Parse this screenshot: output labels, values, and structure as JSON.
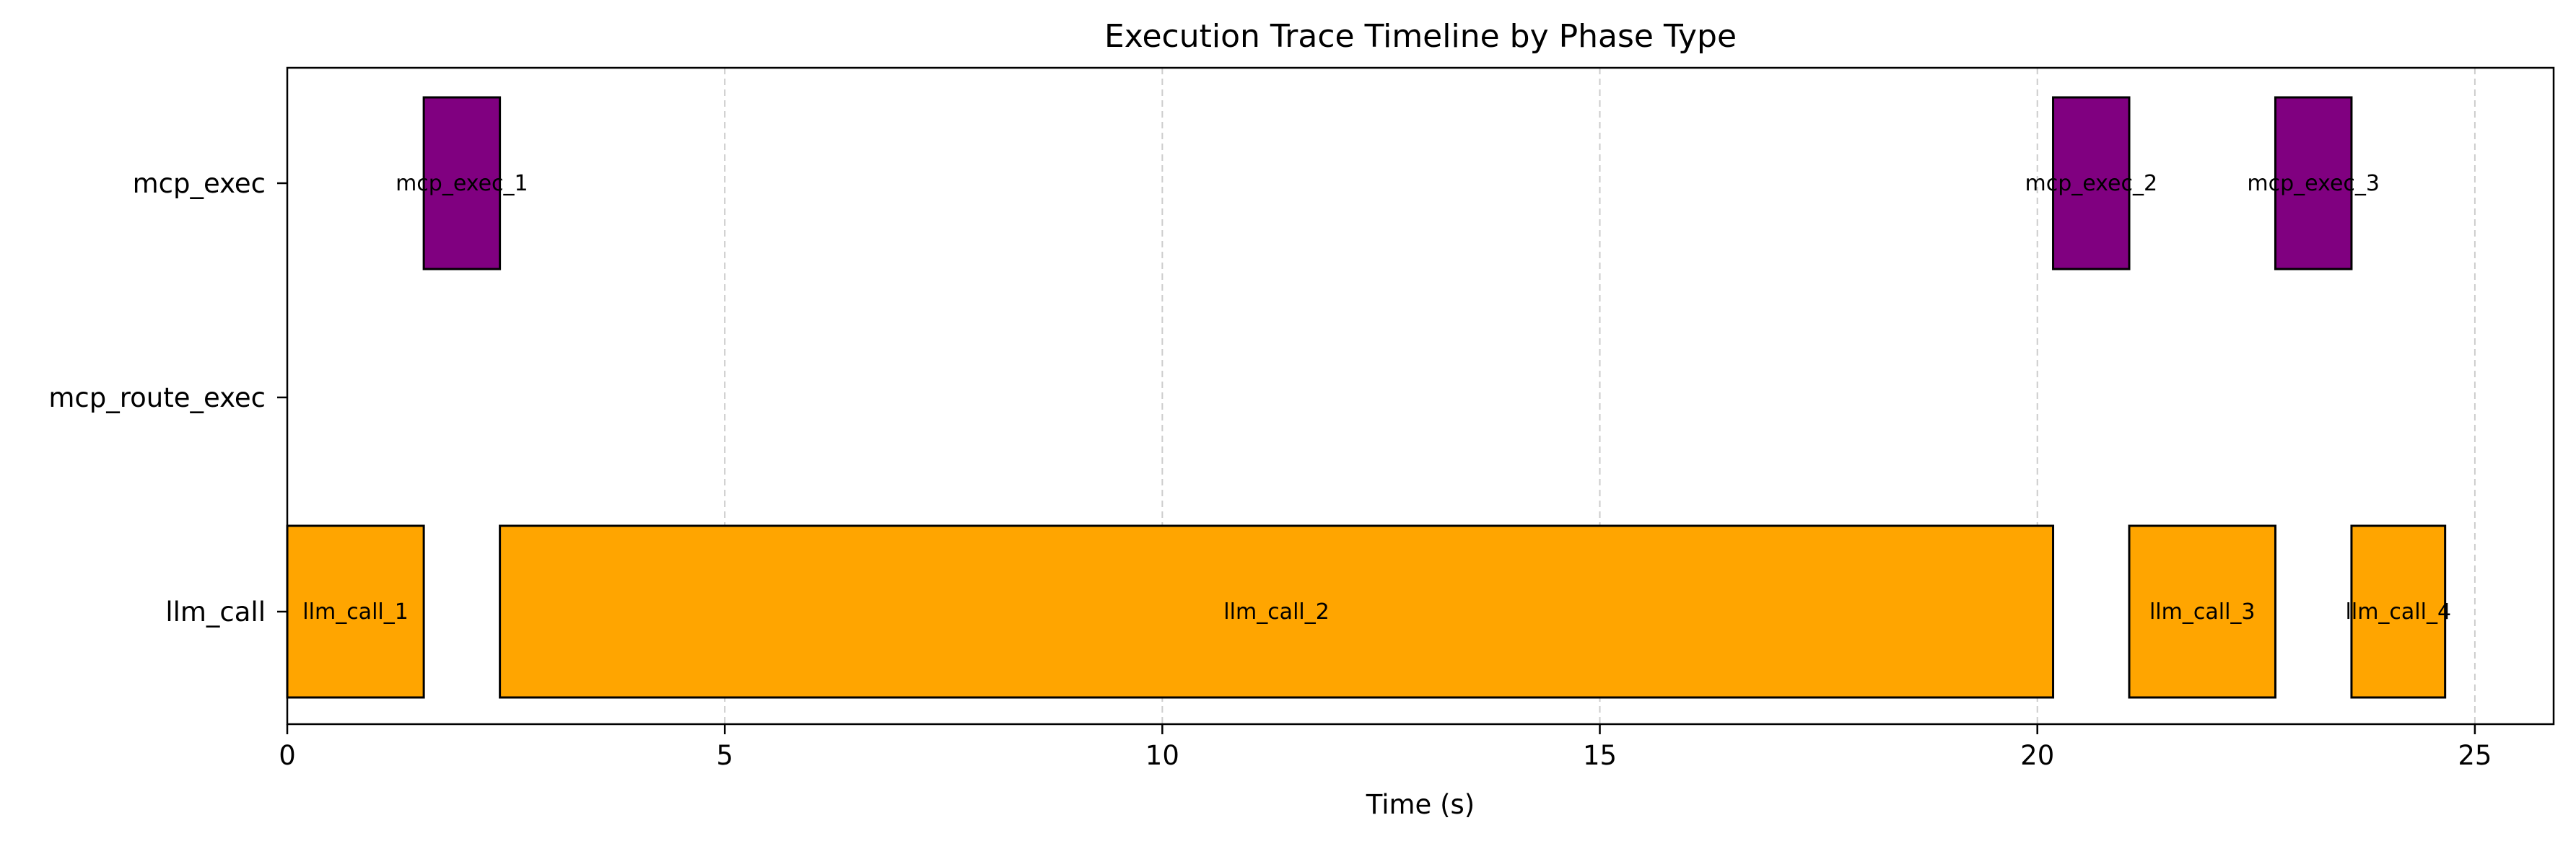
{
  "chart_data": {
    "type": "timeline",
    "title": "Execution Trace Timeline by Phase Type",
    "xlabel": "Time (s)",
    "ylabel": "",
    "xlim": [
      0,
      25.9
    ],
    "x_ticks": [
      0,
      5,
      10,
      15,
      20,
      25
    ],
    "grid": "x-dashed",
    "categories": [
      "mcp_exec",
      "mcp_route_exec",
      "llm_call"
    ],
    "colors": {
      "mcp_exec": "#800080",
      "llm_call": "#ffa500"
    },
    "bars": [
      {
        "label": "mcp_exec_1",
        "category": "mcp_exec",
        "start": 1.56,
        "end": 2.43
      },
      {
        "label": "mcp_exec_2",
        "category": "mcp_exec",
        "start": 20.18,
        "end": 21.05
      },
      {
        "label": "mcp_exec_3",
        "category": "mcp_exec",
        "start": 22.72,
        "end": 23.59
      },
      {
        "label": "llm_call_1",
        "category": "llm_call",
        "start": 0.0,
        "end": 1.56
      },
      {
        "label": "llm_call_2",
        "category": "llm_call",
        "start": 2.43,
        "end": 20.18
      },
      {
        "label": "llm_call_3",
        "category": "llm_call",
        "start": 21.05,
        "end": 22.72
      },
      {
        "label": "llm_call_4",
        "category": "llm_call",
        "start": 23.59,
        "end": 24.66
      }
    ]
  }
}
